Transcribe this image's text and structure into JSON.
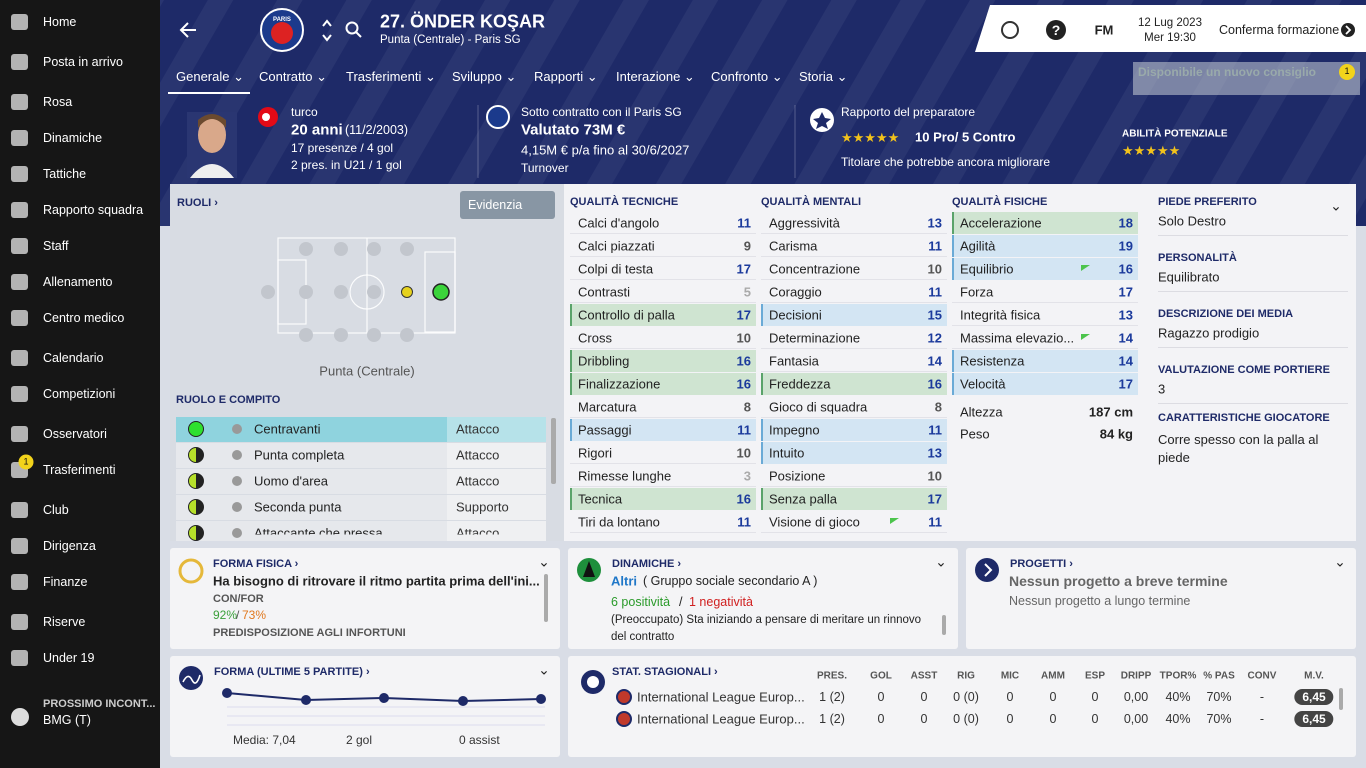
{
  "sidebar": {
    "items": [
      "Home",
      "Posta in arrivo",
      "Rosa",
      "Dinamiche",
      "Tattiche",
      "Rapporto squadra",
      "Staff",
      "Allenamento",
      "Centro medico",
      "Calendario",
      "Competizioni",
      "Osservatori",
      "Trasferimenti",
      "Club",
      "Dirigenza",
      "Finanze",
      "Riserve",
      "Under 19"
    ],
    "badge": "1",
    "next_match": {
      "label": "PROSSIMO INCONT...",
      "value": "BMG (T)"
    }
  },
  "header": {
    "club_badge": "PARIS",
    "title": "27. ÖNDER KOŞAR",
    "subtitle": "Punta (Centrale) - Paris SG",
    "brand": "FM",
    "date": "12 Lug 2023",
    "time": "Mer 19:30",
    "confirm": "Conferma formazione"
  },
  "tabs": [
    "Generale",
    "Contratto",
    "Trasferimenti",
    "Sviluppo",
    "Rapporti",
    "Interazione",
    "Confronto",
    "Storia"
  ],
  "notification": {
    "text": "Disponibile un nuovo consiglio",
    "badge": "1"
  },
  "profile": {
    "nationality": "turco",
    "age": "20 anni",
    "birth": "(11/2/2003)",
    "apps": "17 presenze / 4 gol",
    "u21": "2 pres. in U21 / 1 gol",
    "contract": "Sotto contratto con il Paris SG",
    "value": "Valutato 73M €",
    "wage": "4,15M € p/a fino al 30/6/2027",
    "status": "Turnover",
    "report": "Rapporto del preparatore",
    "pros_cons": "10 Pro/ 5 Contro",
    "verdict": "Titolare che potrebbe ancora migliorare",
    "potential": "ABILITÀ POTENZIALE"
  },
  "roles": {
    "title": "RUOLI ›",
    "filter": "Evidenzia",
    "position": "Punta (Centrale)",
    "section": "RUOLO E COMPITO",
    "rows": [
      {
        "role": "Centravanti",
        "duty": "Attacco"
      },
      {
        "role": "Punta completa",
        "duty": "Attacco"
      },
      {
        "role": "Uomo d'area",
        "duty": "Attacco"
      },
      {
        "role": "Seconda punta",
        "duty": "Supporto"
      },
      {
        "role": "Attaccante che pressa",
        "duty": "Attacco"
      }
    ]
  },
  "attributes": [
    {
      "title": "QUALITÀ TECNICHE",
      "rows": [
        {
          "name": "Calci d'angolo",
          "value": 11
        },
        {
          "name": "Calci piazzati",
          "value": 9
        },
        {
          "name": "Colpi di testa",
          "value": 17
        },
        {
          "name": "Contrasti",
          "value": 5
        },
        {
          "name": "Controllo di palla",
          "value": 17,
          "color": "#cfe4d1"
        },
        {
          "name": "Cross",
          "value": 10
        },
        {
          "name": "Dribbling",
          "value": 16,
          "color": "#cfe4d1"
        },
        {
          "name": "Finalizzazione",
          "value": 16,
          "color": "#cfe4d1"
        },
        {
          "name": "Marcatura",
          "value": 8
        },
        {
          "name": "Passaggi",
          "value": 11,
          "color": "#d3e5f3"
        },
        {
          "name": "Rigori",
          "value": 10
        },
        {
          "name": "Rimesse lunghe",
          "value": 3
        },
        {
          "name": "Tecnica",
          "value": 16,
          "color": "#cfe4d1"
        },
        {
          "name": "Tiri da lontano",
          "value": 11
        }
      ]
    },
    {
      "title": "QUALITÀ MENTALI",
      "rows": [
        {
          "name": "Aggressività",
          "value": 13
        },
        {
          "name": "Carisma",
          "value": 11
        },
        {
          "name": "Concentrazione",
          "value": 10
        },
        {
          "name": "Coraggio",
          "value": 11
        },
        {
          "name": "Decisioni",
          "value": 15,
          "color": "#d3e5f3"
        },
        {
          "name": "Determinazione",
          "value": 12
        },
        {
          "name": "Fantasia",
          "value": 14
        },
        {
          "name": "Freddezza",
          "value": 16,
          "color": "#cfe4d1"
        },
        {
          "name": "Gioco di squadra",
          "value": 8
        },
        {
          "name": "Impegno",
          "value": 11,
          "color": "#d3e5f3"
        },
        {
          "name": "Intuito",
          "value": 13,
          "color": "#d3e5f3"
        },
        {
          "name": "Posizione",
          "value": 10
        },
        {
          "name": "Senza palla",
          "value": 17,
          "color": "#cfe4d1"
        },
        {
          "name": "Visione di gioco",
          "value": 11,
          "arrow": true
        }
      ]
    },
    {
      "title": "QUALITÀ FISICHE",
      "rows": [
        {
          "name": "Accelerazione",
          "value": 18,
          "color": "#cfe4d1"
        },
        {
          "name": "Agilità",
          "value": 19,
          "color": "#d3e5f3"
        },
        {
          "name": "Equilibrio",
          "value": 16,
          "color": "#d3e5f3",
          "arrow": true
        },
        {
          "name": "Forza",
          "value": 17
        },
        {
          "name": "Integrità fisica",
          "value": 13
        },
        {
          "name": "Massima elevazio...",
          "value": 14,
          "arrow": true
        },
        {
          "name": "Resistenza",
          "value": 14,
          "color": "#d3e5f3"
        },
        {
          "name": "Velocità",
          "value": 17,
          "color": "#d3e5f3"
        }
      ]
    }
  ],
  "physique": [
    {
      "label": "Altezza",
      "value": "187 cm"
    },
    {
      "label": "Peso",
      "value": "84 kg"
    }
  ],
  "details": [
    {
      "label": "PIEDE PREFERITO",
      "value": "Solo Destro"
    },
    {
      "label": "PERSONALITÀ",
      "value": "Equilibrato"
    },
    {
      "label": "DESCRIZIONE DEI MEDIA",
      "value": "Ragazzo prodigio"
    },
    {
      "label": "VALUTAZIONE COME PORTIERE",
      "value": "3"
    },
    {
      "label": "CARATTERISTICHE GIOCATORE",
      "value": "Corre spesso con la palla al piede"
    }
  ],
  "fitness": {
    "title": "FORMA FISICA ›",
    "text": "Ha bisogno di ritrovare il ritmo partita prima dell'ini...",
    "con_for": "CON/FOR",
    "condition": "92%",
    "sep": "/",
    "sharpness": "73%",
    "injury": "PREDISPOSIZIONE AGLI INFORTUNI"
  },
  "dynamics": {
    "title": "DINAMICHE ›",
    "group": "Altri",
    "group_detail": "( Gruppo sociale secondario A )",
    "positives": "6 positività",
    "sep": "/",
    "negatives": "1 negatività",
    "note": "(Preoccupato) Sta iniziando a pensare di meritare un rinnovo del contratto"
  },
  "projects": {
    "title": "PROGETTI ›",
    "short": "Nessun progetto a breve termine",
    "long": "Nessun progetto a lungo termine"
  },
  "form": {
    "title": "FORMA (ULTIME 5 PARTITE) ›",
    "average": "Media: 7,04",
    "goals": "2 gol",
    "assists": "0 assist"
  },
  "stats": {
    "title": "STAT. STAGIONALI ›",
    "headers": [
      "PRES.",
      "GOL",
      "ASST",
      "RIG",
      "MIC",
      "AMM",
      "ESP",
      "DRIPP",
      "TPOR%",
      "% PAS",
      "CONV",
      "M.V."
    ],
    "rows": [
      [
        "International League Europ...",
        "1 (2)",
        "0",
        "0",
        "0 (0)",
        "0",
        "0",
        "0",
        "0,00",
        "40%",
        "70%",
        "-",
        "6,45"
      ],
      [
        "International League Europ...",
        "1 (2)",
        "0",
        "0",
        "0 (0)",
        "0",
        "0",
        "0",
        "0,00",
        "40%",
        "70%",
        "-",
        "6,45"
      ]
    ]
  }
}
